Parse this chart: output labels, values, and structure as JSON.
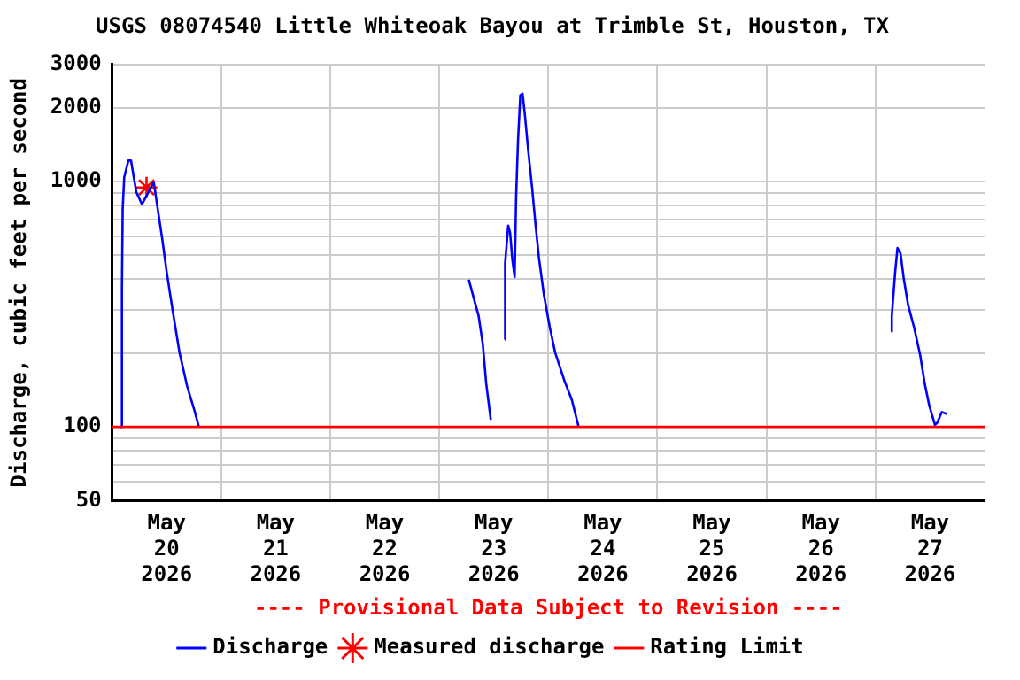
{
  "chart_data": {
    "type": "line",
    "title": "USGS 08074540 Little Whiteoak Bayou at Trimble St, Houston, TX",
    "ylabel": "Discharge, cubic feet per second",
    "annotations": [
      "---- Provisional Data Subject to Revision ----"
    ],
    "log": "y",
    "grid": true,
    "legend": "bottom",
    "marker": "none",
    "line_style": "solid",
    "xlim": [
      "2026-05-20T00:00",
      "2026-05-28T00:00"
    ],
    "xticks": [
      {
        "value": "2026-05-20T12:00",
        "label": "May 20 2026"
      },
      {
        "value": "2026-05-21T00:00",
        "label": null
      },
      {
        "value": "2026-05-21T12:00",
        "label": "May 21 2026"
      },
      {
        "value": "2026-05-22T00:00",
        "label": null
      },
      {
        "value": "2026-05-22T12:00",
        "label": "May 22 2026"
      },
      {
        "value": "2026-05-23T00:00",
        "label": null
      },
      {
        "value": "2026-05-23T12:00",
        "label": "May 23 2026"
      },
      {
        "value": "2026-05-24T00:00",
        "label": null
      },
      {
        "value": "2026-05-24T12:00",
        "label": "May 24 2026"
      },
      {
        "value": "2026-05-25T00:00",
        "label": null
      },
      {
        "value": "2026-05-25T12:00",
        "label": "May 25 2026"
      },
      {
        "value": "2026-05-26T00:00",
        "label": null
      },
      {
        "value": "2026-05-26T12:00",
        "label": "May 26 2026"
      },
      {
        "value": "2026-05-27T00:00",
        "label": null
      },
      {
        "value": "2026-05-27T12:00",
        "label": "May 27 2026"
      }
    ],
    "ylim": [
      50,
      3000
    ],
    "yticks": [
      50,
      {
        "value": 60,
        "label": null
      },
      {
        "value": 70,
        "label": null
      },
      {
        "value": 80,
        "label": null
      },
      {
        "value": 90,
        "label": null
      },
      100,
      {
        "value": 200,
        "label": null
      },
      {
        "value": 300,
        "label": null
      },
      {
        "value": 400,
        "label": null
      },
      {
        "value": 500,
        "label": null
      },
      {
        "value": 600,
        "label": null
      },
      {
        "value": 700,
        "label": null
      },
      {
        "value": 800,
        "label": null
      },
      {
        "value": 900,
        "label": null
      },
      1000,
      2000,
      3000
    ],
    "ref_lines": [
      {
        "axis": "y",
        "value": 100,
        "label": "Rating Limit",
        "color": "#ff0000",
        "line_style": "solid"
      }
    ],
    "series": [
      {
        "name": "Discharge",
        "type": "line",
        "color": "#0000ff",
        "x": [
          "2026-05-20T01:50",
          "2026-05-20T02:10",
          "2026-05-20T02:20",
          "2026-05-20T02:40",
          "2026-05-20T03:35",
          "2026-05-20T04:10",
          "2026-05-20T05:20",
          "2026-05-20T06:35",
          "2026-05-20T07:30",
          "2026-05-20T09:10",
          "2026-05-20T10:05",
          "2026-05-20T11:00",
          "2026-05-20T12:00",
          "2026-05-20T13:20",
          "2026-05-20T14:50",
          "2026-05-20T16:30",
          "2026-05-20T18:10",
          "2026-05-20T19:05",
          "2026-05-22T00:00",
          "2026-05-23T06:30",
          "2026-05-23T07:40",
          "2026-05-23T08:40",
          "2026-05-23T09:35",
          "2026-05-23T10:20",
          "2026-05-23T11:20",
          "2026-05-23T12:50",
          "2026-05-23T14:25",
          "2026-05-23T14:30",
          "2026-05-23T15:10",
          "2026-05-23T15:35",
          "2026-05-23T16:05",
          "2026-05-23T16:35",
          "2026-05-23T16:55",
          "2026-05-23T17:20",
          "2026-05-23T17:50",
          "2026-05-23T18:20",
          "2026-05-23T18:50",
          "2026-05-23T19:35",
          "2026-05-23T20:25",
          "2026-05-23T21:10",
          "2026-05-23T21:55",
          "2026-05-23T23:00",
          "2026-05-24T00:20",
          "2026-05-24T01:30",
          "2026-05-24T03:30",
          "2026-05-24T05:10",
          "2026-05-24T06:40",
          "2026-05-25T12:00",
          "2026-05-27T03:30",
          "2026-05-27T03:35",
          "2026-05-27T04:20",
          "2026-05-27T04:50",
          "2026-05-27T05:30",
          "2026-05-27T06:10",
          "2026-05-27T07:10",
          "2026-05-27T08:30",
          "2026-05-27T09:50",
          "2026-05-27T10:50",
          "2026-05-27T11:50",
          "2026-05-27T13:05",
          "2026-05-27T13:35",
          "2026-05-27T14:35",
          "2026-05-27T15:40"
        ],
        "values": [
          100,
          364,
          774,
          1040,
          1217,
          1217,
          906,
          808,
          870,
          996,
          764,
          590,
          430,
          298,
          201,
          147,
          116,
          100,
          null,
          398,
          331,
          283,
          217,
          150,
          107,
          null,
          227,
          466,
          661,
          620,
          480,
          408,
          873,
          1477,
          2247,
          2280,
          1871,
          1330,
          946,
          672,
          491,
          348,
          254,
          201,
          155,
          129,
          100,
          null,
          244,
          283,
          430,
          536,
          510,
          408,
          314,
          254,
          196,
          150,
          122,
          102,
          104,
          115,
          113
        ]
      },
      {
        "name": "Measured discharge",
        "type": "scatter",
        "color": "#ff0000",
        "marker": "cross",
        "x": [
          "2026-05-20T07:35"
        ],
        "values": [
          946
        ]
      }
    ]
  }
}
